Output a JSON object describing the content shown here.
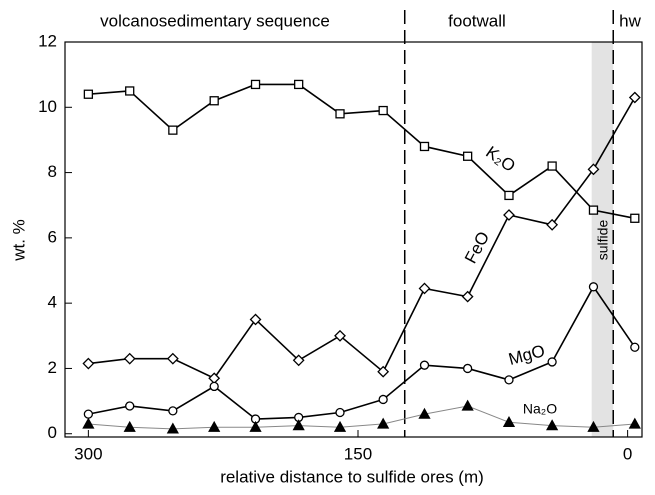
{
  "chart_data": {
    "type": "line",
    "xlabel": "relative distance to sulfide ores (m)",
    "ylabel": "wt. %",
    "x": [
      300,
      277,
      253,
      230,
      207,
      183,
      160,
      136,
      113,
      89,
      66,
      42,
      19,
      -4
    ],
    "series": [
      {
        "name": "K₂O",
        "color": "#000000",
        "marker": "square",
        "values": [
          10.4,
          10.5,
          9.3,
          10.2,
          10.7,
          10.7,
          9.8,
          9.9,
          8.8,
          8.5,
          7.3,
          8.2,
          6.85,
          6.6
        ]
      },
      {
        "name": "FeO",
        "color": "#000000",
        "marker": "diamond",
        "values": [
          2.15,
          2.3,
          2.3,
          1.7,
          3.5,
          2.25,
          3.0,
          1.9,
          4.45,
          4.2,
          6.7,
          6.4,
          8.1,
          10.3
        ]
      },
      {
        "name": "MgO",
        "color": "#000000",
        "marker": "circle",
        "values": [
          0.6,
          0.85,
          0.7,
          1.45,
          0.45,
          0.5,
          0.65,
          1.05,
          2.1,
          2.0,
          1.65,
          2.2,
          4.5,
          2.65
        ]
      },
      {
        "name": "Na₂O",
        "color": "#888888",
        "marker": "triangle",
        "values": [
          0.3,
          0.2,
          0.15,
          0.2,
          0.2,
          0.25,
          0.2,
          0.3,
          0.6,
          0.85,
          0.35,
          0.25,
          0.2,
          0.3
        ]
      }
    ],
    "xlim": [
      313,
      -8
    ],
    "ylim": [
      -0.1,
      12
    ],
    "xticks": [
      300,
      150,
      0
    ],
    "yticks": [
      0,
      2,
      4,
      6,
      8,
      10,
      12
    ],
    "boundaries": [
      124,
      8
    ],
    "band": [
      20,
      8
    ],
    "band_color": "#e3e3e3",
    "sections": [
      "volcanosedimentary sequence",
      "footwall",
      "hw"
    ],
    "band_label": "sulfide"
  }
}
